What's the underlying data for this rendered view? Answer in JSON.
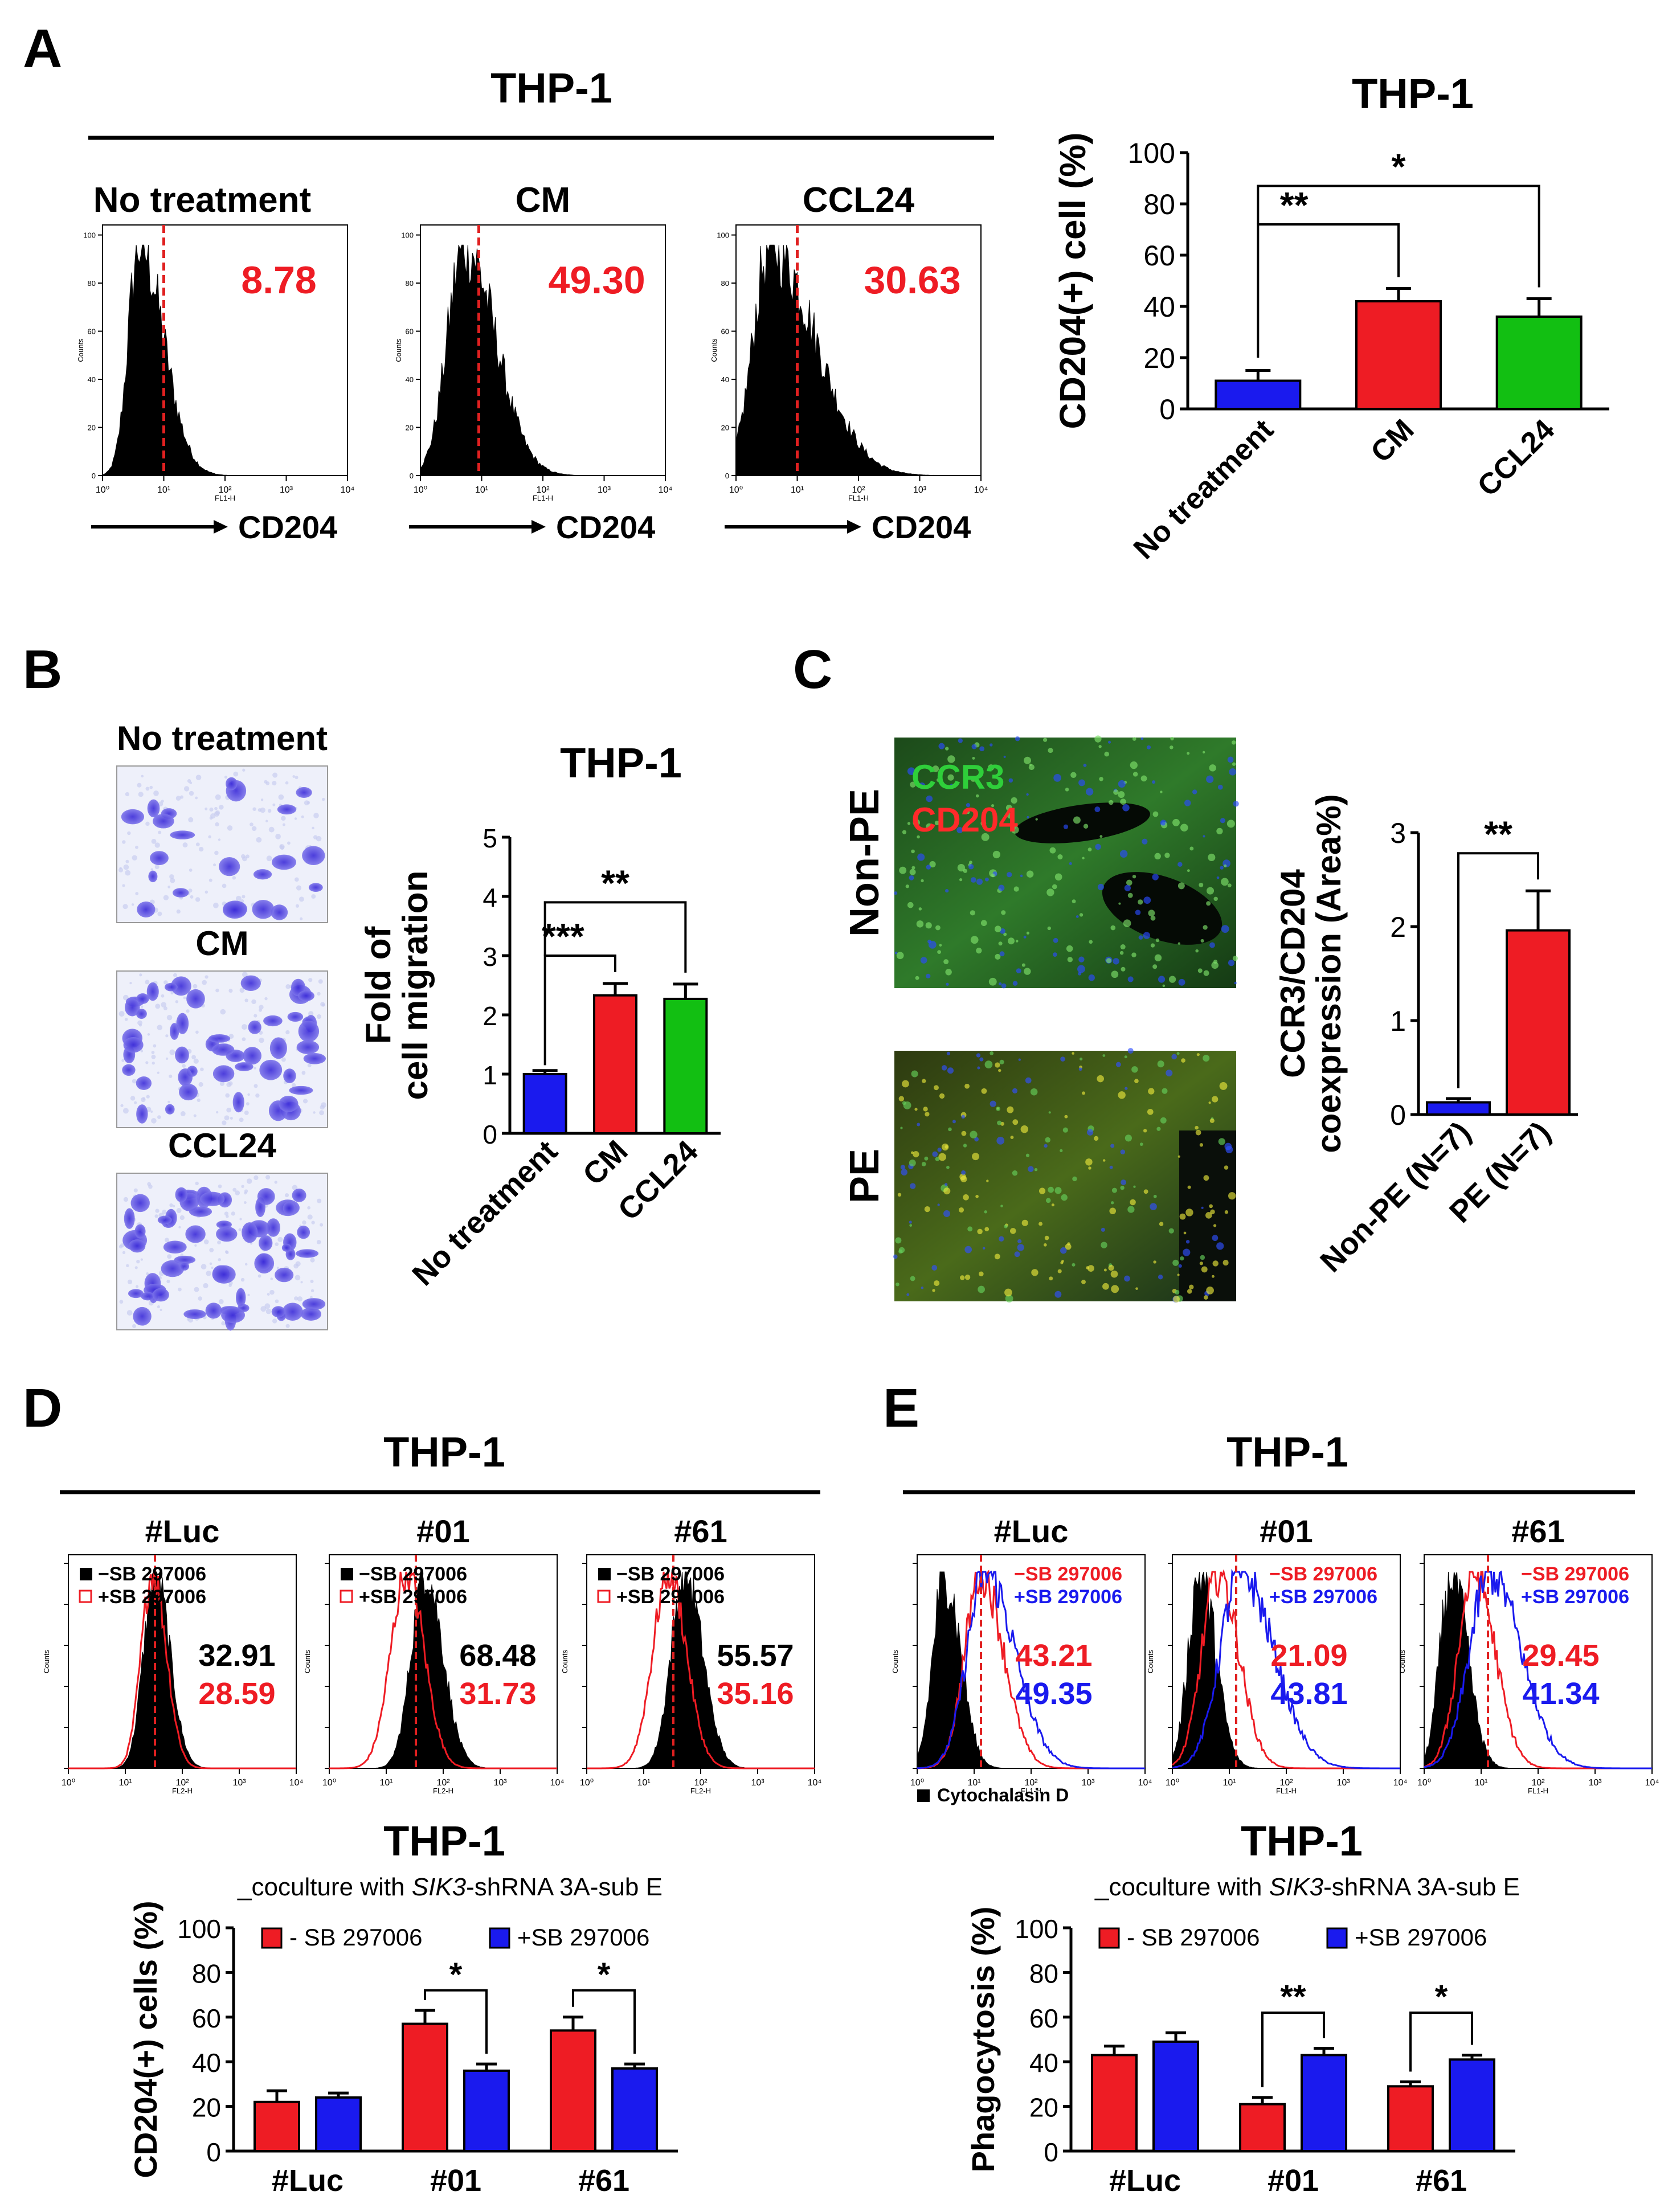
{
  "colors": {
    "red": "#ee1c24",
    "blue": "#1a1aee",
    "green": "#12bf12",
    "black": "#000000",
    "dash": "#e02020"
  },
  "panel_labels": [
    "A",
    "B",
    "C",
    "D",
    "E"
  ],
  "panelA": {
    "header": "THP-1",
    "histograms": [
      {
        "title": "No treatment",
        "value": "8.78",
        "xlabel": "CD204",
        "arrow_label": "CD204"
      },
      {
        "title": "CM",
        "value": "49.30",
        "xlabel": "CD204",
        "arrow_label": "CD204"
      },
      {
        "title": "CCL24",
        "value": "30.63",
        "xlabel": "CD204",
        "arrow_label": "CD204"
      }
    ],
    "hist_axis": {
      "ylabel": "Counts",
      "xlabel": "FL1-H",
      "xticks": [
        "10⁰",
        "10¹",
        "10²",
        "10³",
        "10⁴"
      ],
      "yticks": [
        "0",
        "20",
        "40",
        "60",
        "80",
        "100"
      ]
    }
  },
  "panelB": {
    "micrographs": [
      "No treatment",
      "CM",
      "CCL24"
    ]
  },
  "panelC": {
    "rows": [
      "Non-PE",
      "PE"
    ],
    "overlay": [
      "CCR3",
      "CD204"
    ]
  },
  "panelD": {
    "header": "THP-1",
    "histograms": [
      {
        "title": "#Luc",
        "v1": "32.91",
        "v2": "28.59"
      },
      {
        "title": "#01",
        "v1": "68.48",
        "v2": "31.73"
      },
      {
        "title": "#61",
        "v1": "55.57",
        "v2": "35.16"
      }
    ],
    "legend": [
      "−SB 297006",
      "+SB 297006"
    ],
    "hist_axis": {
      "ylabel": "Counts",
      "xlabel": "FL2-H"
    }
  },
  "panelE": {
    "header": "THP-1",
    "histograms": [
      {
        "title": "#Luc",
        "v1": "43.21",
        "v2": "49.35"
      },
      {
        "title": "#01",
        "v1": "21.09",
        "v2": "43.81"
      },
      {
        "title": "#61",
        "v1": "29.45",
        "v2": "41.34"
      }
    ],
    "legend": [
      "−SB 297006",
      "+SB 297006"
    ],
    "footnote": "Cytochalasin D",
    "hist_axis": {
      "ylabel": "Counts",
      "xlabel": "FL1-H"
    }
  },
  "chart_data": [
    {
      "id": "A",
      "type": "bar",
      "title": "THP-1",
      "ylabel": "CD204(+) cell (%)",
      "ylim": [
        0,
        100
      ],
      "yticks": [
        0,
        20,
        40,
        60,
        80,
        100
      ],
      "categories": [
        "No treatment",
        "CM",
        "CCL24"
      ],
      "values": [
        11,
        42,
        36
      ],
      "errors": [
        4,
        5,
        7
      ],
      "significance": [
        {
          "from": 0,
          "to": 1,
          "label": "**"
        },
        {
          "from": 0,
          "to": 2,
          "label": "*"
        }
      ]
    },
    {
      "id": "B",
      "type": "bar",
      "title": "THP-1",
      "ylabel": "Fold of cell migration",
      "ylim": [
        0,
        5
      ],
      "yticks": [
        0,
        1,
        2,
        3,
        4,
        5
      ],
      "categories": [
        "No treatment",
        "CM",
        "CCL24"
      ],
      "values": [
        1.0,
        2.33,
        2.27
      ],
      "errors": [
        0.06,
        0.2,
        0.25
      ],
      "significance": [
        {
          "from": 0,
          "to": 1,
          "label": "***"
        },
        {
          "from": 0,
          "to": 2,
          "label": "**"
        }
      ]
    },
    {
      "id": "C",
      "type": "bar",
      "title": "",
      "ylabel": "CCR3/CD204 coexpression (Area%)",
      "ylim": [
        0,
        3
      ],
      "yticks": [
        0,
        1,
        2,
        3
      ],
      "categories": [
        "Non-PE (N=7)",
        "PE (N=7)"
      ],
      "values": [
        0.13,
        1.96
      ],
      "errors": [
        0.04,
        0.42
      ],
      "significance": [
        {
          "from": 0,
          "to": 1,
          "label": "**"
        }
      ]
    },
    {
      "id": "D",
      "type": "bar",
      "title": "THP-1",
      "subtitle_pre": "_coculture with ",
      "subtitle_italic": "SIK3",
      "subtitle_post": "-shRNA 3A-sub E",
      "ylabel": "CD204(+) cells (%)",
      "ylim": [
        0,
        100
      ],
      "yticks": [
        0,
        20,
        40,
        60,
        80,
        100
      ],
      "categories": [
        "#Luc",
        "#01",
        "#61"
      ],
      "series": [
        {
          "name": "- SB 297006",
          "values": [
            22,
            57,
            54
          ],
          "errors": [
            5,
            6,
            6
          ]
        },
        {
          "name": "+SB 297006",
          "values": [
            24,
            36,
            37
          ],
          "errors": [
            2,
            3,
            2
          ]
        }
      ],
      "significance": [
        {
          "group": 1,
          "label": "*"
        },
        {
          "group": 2,
          "label": "*"
        }
      ]
    },
    {
      "id": "E",
      "type": "bar",
      "title": "THP-1",
      "subtitle_pre": "_coculture with ",
      "subtitle_italic": "SIK3",
      "subtitle_post": "-shRNA 3A-sub E",
      "ylabel": "Phagocytosis (%)",
      "ylim": [
        0,
        100
      ],
      "yticks": [
        0,
        20,
        40,
        60,
        80,
        100
      ],
      "categories": [
        "#Luc",
        "#01",
        "#61"
      ],
      "series": [
        {
          "name": "- SB 297006",
          "values": [
            43,
            21,
            29
          ],
          "errors": [
            4,
            3,
            2
          ]
        },
        {
          "name": "+SB 297006",
          "values": [
            49,
            43,
            41
          ],
          "errors": [
            4,
            3,
            2
          ]
        }
      ],
      "significance": [
        {
          "group": 1,
          "label": "**"
        },
        {
          "group": 2,
          "label": "*"
        }
      ]
    }
  ]
}
